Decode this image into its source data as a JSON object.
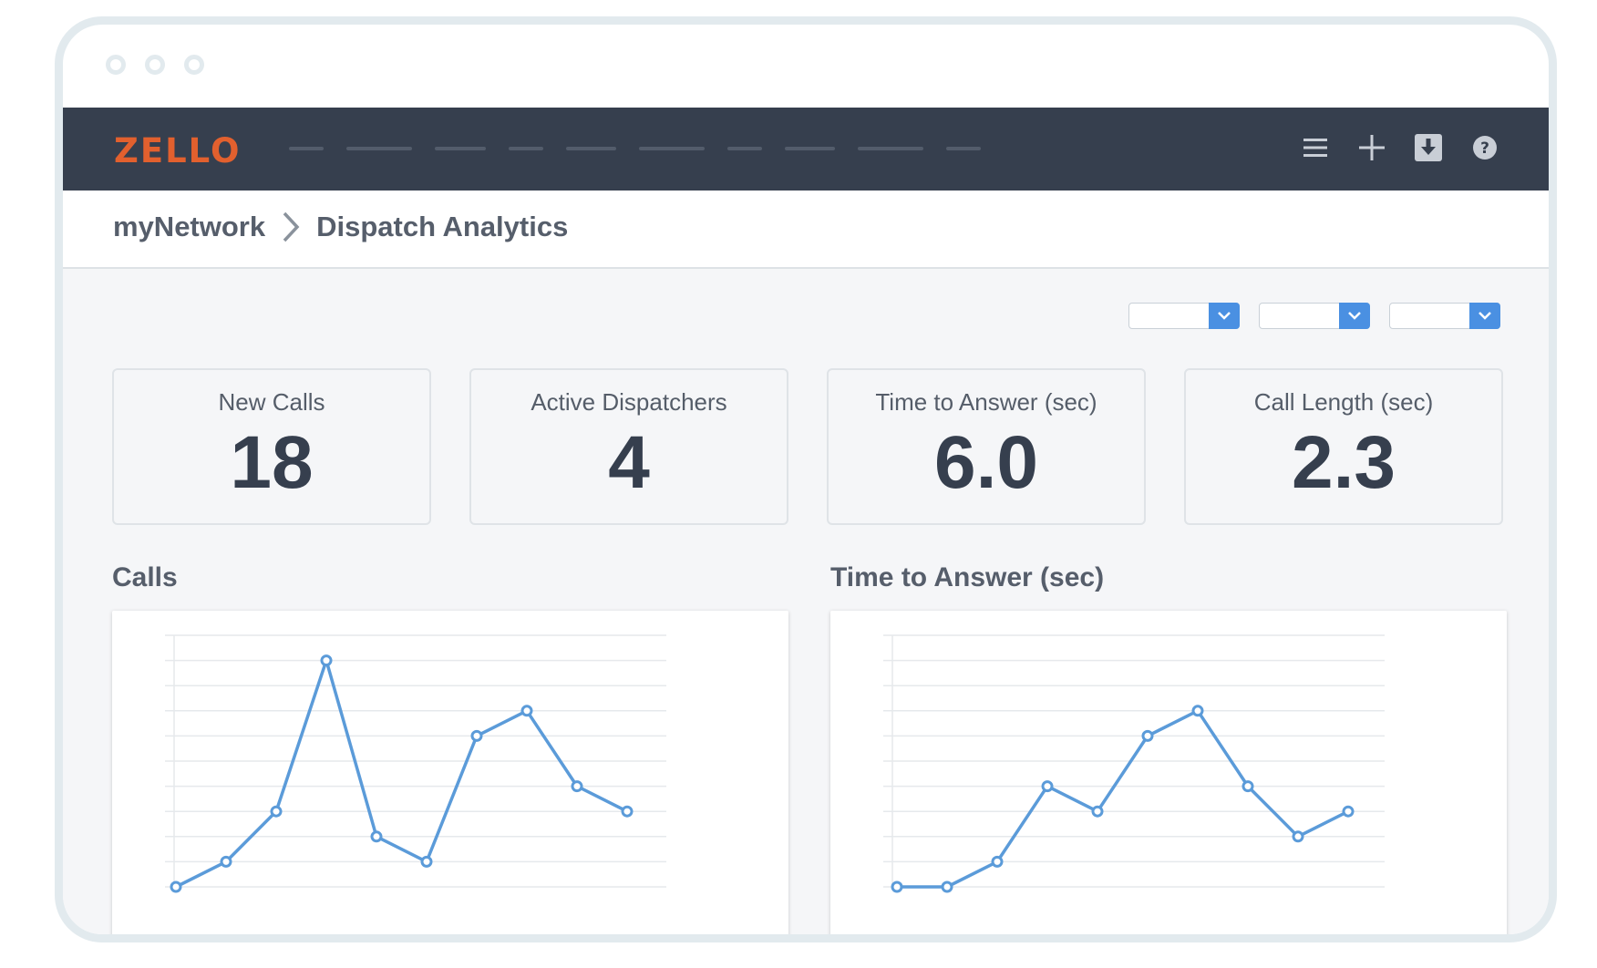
{
  "app": {
    "logo_text": "ZELLO",
    "brand_color": "#e2602e",
    "accent_color": "#4a90e2",
    "nav_bar_color": "#363f4e"
  },
  "topbar": {
    "icons": [
      "menu-icon",
      "plus-icon",
      "download-icon",
      "help-icon"
    ]
  },
  "breadcrumb": {
    "root": "myNetwork",
    "current": "Dispatch Analytics"
  },
  "filters": [
    {
      "value": ""
    },
    {
      "value": ""
    },
    {
      "value": ""
    }
  ],
  "kpis": [
    {
      "label": "New Calls",
      "value": "18"
    },
    {
      "label": "Active Dispatchers",
      "value": "4"
    },
    {
      "label": "Time to Answer (sec)",
      "value": "6.0"
    },
    {
      "label": "Call Length (sec)",
      "value": "2.3"
    }
  ],
  "chart_data": [
    {
      "type": "line",
      "title": "Calls",
      "x": [
        1,
        2,
        3,
        4,
        5,
        6,
        7,
        8,
        9,
        10
      ],
      "series": [
        {
          "values": [
            0,
            1,
            3,
            9,
            2,
            1,
            6,
            7,
            4,
            3
          ]
        }
      ],
      "ylim": [
        0,
        10
      ],
      "grid": true,
      "color": "#5b9bd9"
    },
    {
      "type": "line",
      "title": "Time to Answer (sec)",
      "x": [
        1,
        2,
        3,
        4,
        5,
        6,
        7,
        8,
        9,
        10
      ],
      "series": [
        {
          "values": [
            0,
            0,
            1,
            4,
            3,
            6,
            7,
            4,
            2,
            3
          ]
        }
      ],
      "ylim": [
        0,
        10
      ],
      "grid": true,
      "color": "#5b9bd9"
    }
  ]
}
